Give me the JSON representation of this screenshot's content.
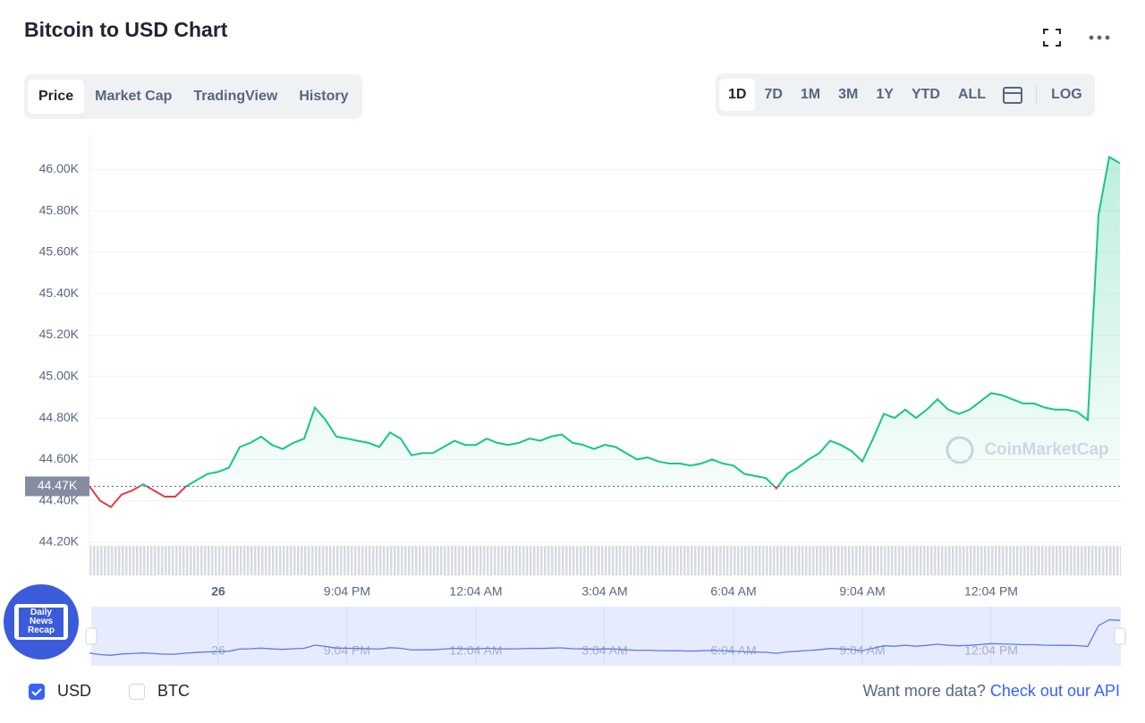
{
  "header": {
    "title": "Bitcoin to USD Chart"
  },
  "tabs": [
    "Price",
    "Market Cap",
    "TradingView",
    "History"
  ],
  "ranges": [
    "1D",
    "7D",
    "1M",
    "3M",
    "1Y",
    "YTD",
    "ALL"
  ],
  "log_button": "LOG",
  "badge": [
    "Daily",
    "News",
    "Recap"
  ],
  "chart_data": {
    "type": "line",
    "watermark": "CoinMarketCap",
    "up_color": "#16c784",
    "down_color": "#ea3943",
    "reference": {
      "value": 44470,
      "label": "44.47K"
    },
    "categories": [
      null,
      null,
      null,
      null,
      null,
      null,
      null,
      null,
      null,
      null,
      null,
      null,
      "26",
      null,
      null,
      null,
      null,
      null,
      null,
      null,
      null,
      null,
      null,
      null,
      "9:04 PM",
      null,
      null,
      null,
      null,
      null,
      null,
      null,
      null,
      null,
      null,
      null,
      "12:04 AM",
      null,
      null,
      null,
      null,
      null,
      null,
      null,
      null,
      null,
      null,
      null,
      "3:04 AM",
      null,
      null,
      null,
      null,
      null,
      null,
      null,
      null,
      null,
      null,
      null,
      "6:04 AM",
      null,
      null,
      null,
      null,
      null,
      null,
      null,
      null,
      null,
      null,
      null,
      "9:04 AM",
      null,
      null,
      null,
      null,
      null,
      null,
      null,
      null,
      null,
      null,
      null,
      "12:04 PM",
      null,
      null,
      null,
      null,
      null,
      null,
      null,
      null,
      null,
      null,
      null,
      null
    ],
    "values": [
      44470,
      44400,
      44370,
      44430,
      44450,
      44480,
      44450,
      44420,
      44420,
      44470,
      44500,
      44530,
      44540,
      44560,
      44660,
      44680,
      44710,
      44670,
      44650,
      44680,
      44700,
      44850,
      44790,
      44710,
      44700,
      44690,
      44680,
      44660,
      44730,
      44700,
      44620,
      44630,
      44630,
      44660,
      44690,
      44670,
      44670,
      44700,
      44680,
      44670,
      44680,
      44700,
      44690,
      44710,
      44720,
      44680,
      44670,
      44650,
      44670,
      44660,
      44630,
      44600,
      44610,
      44590,
      44580,
      44580,
      44570,
      44580,
      44600,
      44580,
      44570,
      44530,
      44520,
      44510,
      44460,
      44530,
      44560,
      44600,
      44630,
      44690,
      44670,
      44640,
      44590,
      44700,
      44820,
      44800,
      44840,
      44800,
      44840,
      44890,
      44840,
      44820,
      44840,
      44880,
      44920,
      44910,
      44890,
      44870,
      44870,
      44850,
      44840,
      44840,
      44830,
      44790,
      45780,
      46060,
      46030
    ],
    "ylim": [
      44040,
      46170
    ],
    "yticks": [
      {
        "value": 44200,
        "label": "44.20K"
      },
      {
        "value": 44400,
        "label": "44.40K"
      },
      {
        "value": 44600,
        "label": "44.60K"
      },
      {
        "value": 44800,
        "label": "44.80K"
      },
      {
        "value": 45000,
        "label": "45.00K"
      },
      {
        "value": 45200,
        "label": "45.20K"
      },
      {
        "value": 45400,
        "label": "45.40K"
      },
      {
        "value": 45600,
        "label": "45.60K"
      },
      {
        "value": 45800,
        "label": "45.80K"
      },
      {
        "value": 46000,
        "label": "46.00K"
      }
    ],
    "grid": true
  },
  "currencies": [
    "USD",
    "BTC"
  ],
  "footer": {
    "text": "Want more data?",
    "link": "Check out our API"
  }
}
